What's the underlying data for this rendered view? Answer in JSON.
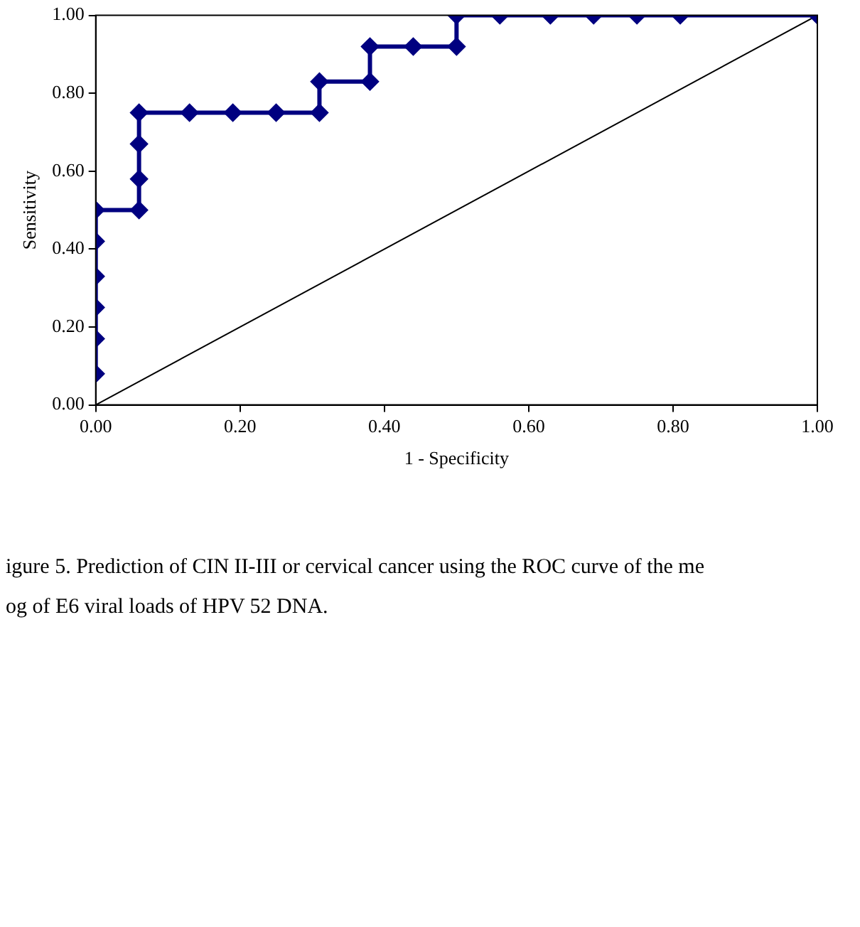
{
  "chart_data": {
    "type": "line",
    "xlabel": "1 - Specificity",
    "ylabel": "Sensitivity",
    "series": [
      {
        "color": "#000080",
        "marker": "diamond",
        "x": [
          0,
          0,
          0,
          0,
          0,
          0,
          0.06,
          0.06,
          0.06,
          0.06,
          0.13,
          0.19,
          0.25,
          0.31,
          0.31,
          0.38,
          0.38,
          0.44,
          0.5,
          0.5,
          0.56,
          0.63,
          0.69,
          0.75,
          0.81,
          1
        ],
        "values": [
          0.08,
          0.17,
          0.25,
          0.33,
          0.42,
          0.5,
          0.5,
          0.58,
          0.67,
          0.75,
          0.75,
          0.75,
          0.75,
          0.75,
          0.83,
          0.83,
          0.92,
          0.92,
          0.92,
          1,
          1,
          1,
          1,
          1,
          1,
          1
        ]
      },
      {
        "color": "#000000",
        "marker": "none",
        "x": [
          0,
          1
        ],
        "values": [
          0,
          1
        ]
      }
    ],
    "xlim": [
      0,
      1
    ],
    "ylim": [
      0,
      1
    ],
    "xticks": [
      {
        "value": 0,
        "label": "0.00"
      },
      {
        "value": 0.2,
        "label": "0.20"
      },
      {
        "value": 0.4,
        "label": "0.40"
      },
      {
        "value": 0.6,
        "label": "0.60"
      },
      {
        "value": 0.8,
        "label": "0.80"
      },
      {
        "value": 1,
        "label": "1.00"
      }
    ],
    "yticks": [
      {
        "value": 0,
        "label": "0.00"
      },
      {
        "value": 0.2,
        "label": "0.20"
      },
      {
        "value": 0.4,
        "label": "0.40"
      },
      {
        "value": 0.6,
        "label": "0.60"
      },
      {
        "value": 0.8,
        "label": "0.80"
      },
      {
        "value": 1,
        "label": "1.00"
      }
    ],
    "grid": false,
    "legend": false,
    "annotations": [
      "igure 5. Prediction of CIN II-III or cervical cancer using the ROC curve of the me",
      "og of E6 viral loads of HPV 52 DNA."
    ]
  }
}
